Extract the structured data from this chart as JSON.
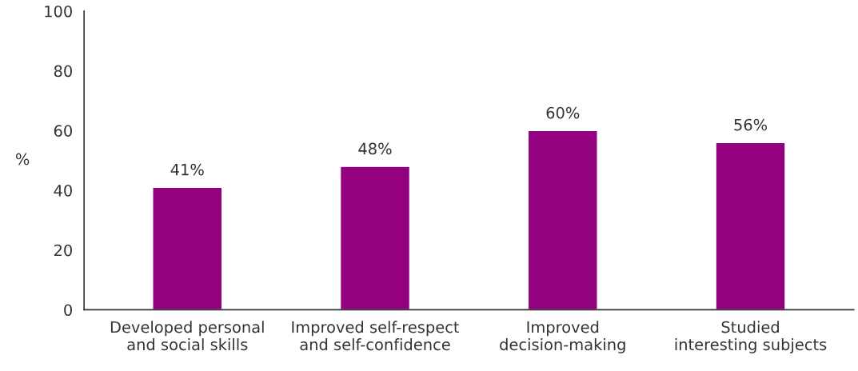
{
  "chart_data": {
    "type": "bar",
    "ylabel": "%",
    "categories": [
      "Developed personal\nand social skills",
      "Improved self-respect\nand self-confidence",
      "Improved\ndecision-making",
      "Studied\ninteresting subjects"
    ],
    "values": [
      41,
      48,
      60,
      56
    ],
    "value_labels": [
      "41%",
      "48%",
      "60%",
      "56%"
    ],
    "color": "#930080",
    "ylim": [
      0,
      100
    ],
    "yticks": [
      0,
      20,
      40,
      60,
      80,
      100
    ],
    "grid": false,
    "legend": false
  }
}
